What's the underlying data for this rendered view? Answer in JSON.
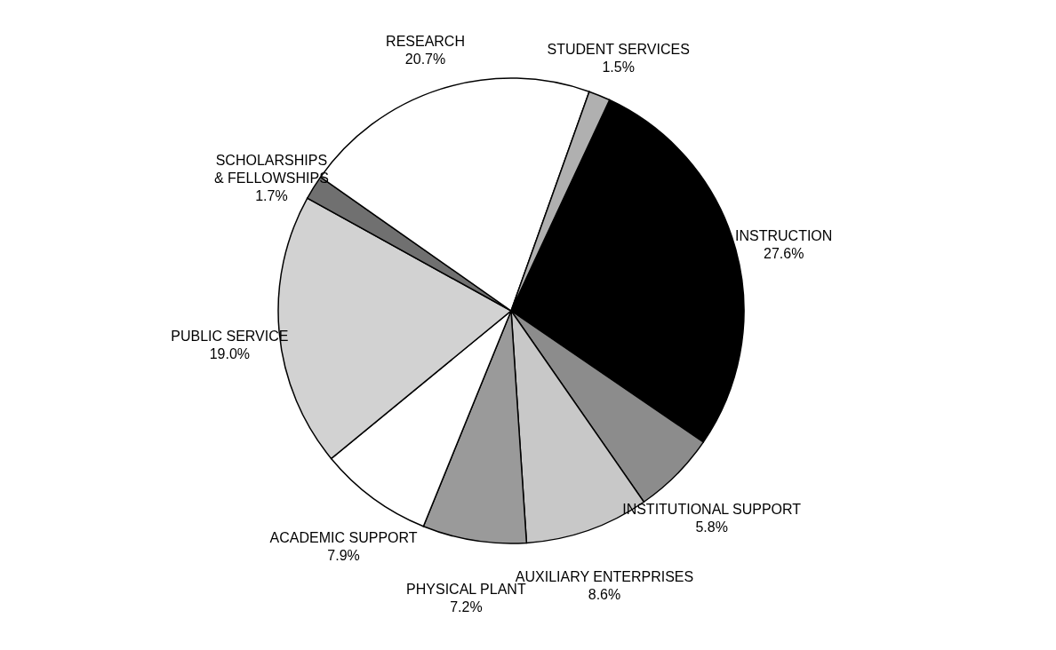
{
  "chart_data": {
    "type": "pie",
    "categories": [
      "INSTRUCTION",
      "INSTITUTIONAL SUPPORT",
      "AUXILIARY ENTERPRISES",
      "PHYSICAL PLANT",
      "ACADEMIC SUPPORT",
      "PUBLIC SERVICE",
      "SCHOLARSHIPS\n& FELLOWSHIPS",
      "RESEARCH",
      "STUDENT SERVICES"
    ],
    "values": [
      27.6,
      5.8,
      8.6,
      7.2,
      7.9,
      19.0,
      1.7,
      20.7,
      1.5
    ],
    "value_labels": [
      "27.6%",
      "5.8%",
      "8.6%",
      "7.2%",
      "7.9%",
      "19.0%",
      "1.7%",
      "20.7%",
      "1.5%"
    ],
    "colors": [
      "#000000",
      "#8c8c8c",
      "#c8c8c8",
      "#9a9a9a",
      "#ffffff",
      "#d2d2d2",
      "#707070",
      "#ffffff",
      "#b0b0b0"
    ],
    "legend": false
  }
}
